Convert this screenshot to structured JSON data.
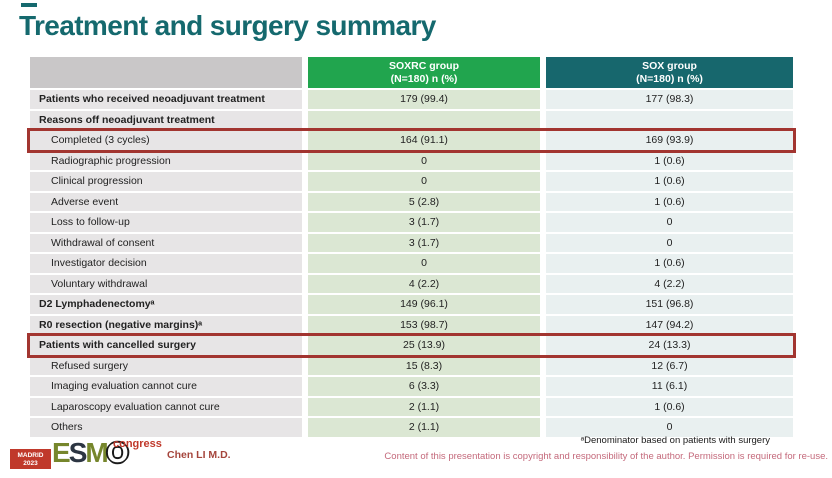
{
  "slide": {
    "title": "Treatment and surgery summary",
    "author": "Chen LI M.D.",
    "footnote": "ᵃDenominator based on patients with surgery",
    "copyright": "Content of this presentation is copyright and responsibility of the author. Permission is required for re-use."
  },
  "logo": {
    "city": "MADRID",
    "year": "2023",
    "letter_e": "E",
    "letter_s": "S",
    "letter_m": "M",
    "letter_o": "O",
    "suffix": "congress"
  },
  "table": {
    "group1": {
      "name": "SOXRC group",
      "sub": "(N=180) n (%)"
    },
    "group2": {
      "name": "SOX group",
      "sub": "(N=180) n (%)"
    },
    "rows": [
      {
        "label": "Patients who received neoadjuvant treatment",
        "soxrc": "179 (99.4)",
        "sox": "177 (98.3)",
        "bold": true,
        "indent": false,
        "highlight": false
      },
      {
        "label": "Reasons off neoadjuvant treatment",
        "soxrc": "",
        "sox": "",
        "bold": true,
        "indent": false,
        "highlight": false
      },
      {
        "label": "Completed (3 cycles)",
        "soxrc": "164 (91.1)",
        "sox": "169 (93.9)",
        "bold": false,
        "indent": true,
        "highlight": true
      },
      {
        "label": "Radiographic progression",
        "soxrc": "0",
        "sox": "1 (0.6)",
        "bold": false,
        "indent": true,
        "highlight": false
      },
      {
        "label": "Clinical progression",
        "soxrc": "0",
        "sox": "1 (0.6)",
        "bold": false,
        "indent": true,
        "highlight": false
      },
      {
        "label": "Adverse event",
        "soxrc": "5 (2.8)",
        "sox": "1 (0.6)",
        "bold": false,
        "indent": true,
        "highlight": false
      },
      {
        "label": "Loss to follow-up",
        "soxrc": "3 (1.7)",
        "sox": "0",
        "bold": false,
        "indent": true,
        "highlight": false
      },
      {
        "label": "Withdrawal of consent",
        "soxrc": "3 (1.7)",
        "sox": "0",
        "bold": false,
        "indent": true,
        "highlight": false
      },
      {
        "label": "Investigator decision",
        "soxrc": "0",
        "sox": "1 (0.6)",
        "bold": false,
        "indent": true,
        "highlight": false
      },
      {
        "label": "Voluntary withdrawal",
        "soxrc": "4 (2.2)",
        "sox": "4 (2.2)",
        "bold": false,
        "indent": true,
        "highlight": false
      },
      {
        "label": "D2 Lymphadenectomyᵃ",
        "soxrc": "149 (96.1)",
        "sox": "151 (96.8)",
        "bold": true,
        "indent": false,
        "highlight": false
      },
      {
        "label": "R0 resection (negative margins)ᵃ",
        "soxrc": "153 (98.7)",
        "sox": "147 (94.2)",
        "bold": true,
        "indent": false,
        "highlight": false
      },
      {
        "label": "Patients with cancelled surgery",
        "soxrc": "25 (13.9)",
        "sox": "24 (13.3)",
        "bold": true,
        "indent": false,
        "highlight": true
      },
      {
        "label": "Refused surgery",
        "soxrc": "15 (8.3)",
        "sox": "12 (6.7)",
        "bold": false,
        "indent": true,
        "highlight": false
      },
      {
        "label": "Imaging evaluation cannot cure",
        "soxrc": "6 (3.3)",
        "sox": "11 (6.1)",
        "bold": false,
        "indent": true,
        "highlight": false
      },
      {
        "label": "Laparoscopy evaluation cannot cure",
        "soxrc": "2 (1.1)",
        "sox": "1 (0.6)",
        "bold": false,
        "indent": true,
        "highlight": false
      },
      {
        "label": "Others",
        "soxrc": "2 (1.1)",
        "sox": "0",
        "bold": false,
        "indent": true,
        "highlight": false
      }
    ]
  },
  "colors": {
    "accent_teal": "#15696e",
    "header_green": "#21a54e",
    "header_teal": "#17676d",
    "header_gray": "#c9c7c8",
    "label_bg": "#e7e5e6",
    "soxrc_col_bg": "#dbe7d3",
    "sox_col_bg": "#e9f0f0",
    "highlight_red": "#a23530",
    "madrid_red": "#c0392b",
    "congress_red": "#c0392b",
    "author_red": "#a5453c",
    "copyright_pink": "#c4697b",
    "esmo_olive": "#76862c",
    "esmo_dark": "#2c3542"
  }
}
